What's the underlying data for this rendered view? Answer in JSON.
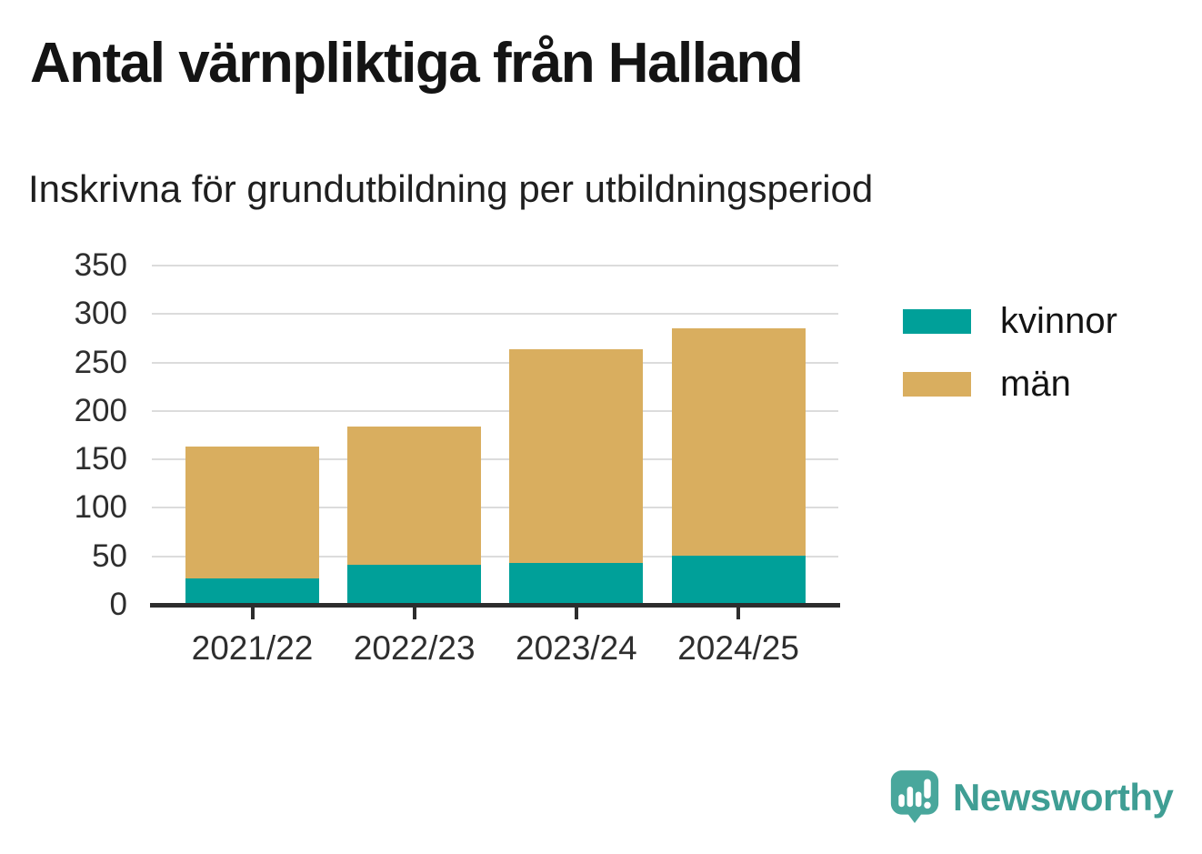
{
  "header": {
    "title": "Antal värnpliktiga från Halland",
    "subtitle": "Inskrivna för grundutbildning per utbildningsperiod"
  },
  "chart_data": {
    "type": "bar",
    "stacked": true,
    "title": "Antal värnpliktiga från Halland",
    "subtitle": "Inskrivna för grundutbildning per utbildningsperiod",
    "categories": [
      "2021/22",
      "2022/23",
      "2023/24",
      "2024/25"
    ],
    "series": [
      {
        "name": "kvinnor",
        "color": "#00a099",
        "values": [
          27,
          41,
          43,
          51
        ]
      },
      {
        "name": "män",
        "color": "#d9ae5f",
        "values": [
          136,
          143,
          221,
          234
        ]
      }
    ],
    "stacked_totals": [
      163,
      184,
      264,
      285
    ],
    "ylim": [
      0,
      350
    ],
    "yticks": [
      0,
      50,
      100,
      150,
      200,
      250,
      300,
      350
    ],
    "xlabel": "",
    "ylabel": "",
    "grid": true,
    "legend_position": "right",
    "legend": [
      "kvinnor",
      "män"
    ]
  },
  "branding": {
    "name": "Newsworthy",
    "icon": "newsworthy-speech-bubble-chart-icon",
    "color": "#3f9e94",
    "icon_color": "#49a79c"
  },
  "colors": {
    "background": "#ffffff",
    "grid": "#dcdcdc",
    "axis": "#2d2d2d",
    "tick_label": "#2e2e2e",
    "title_text": "#141414"
  }
}
